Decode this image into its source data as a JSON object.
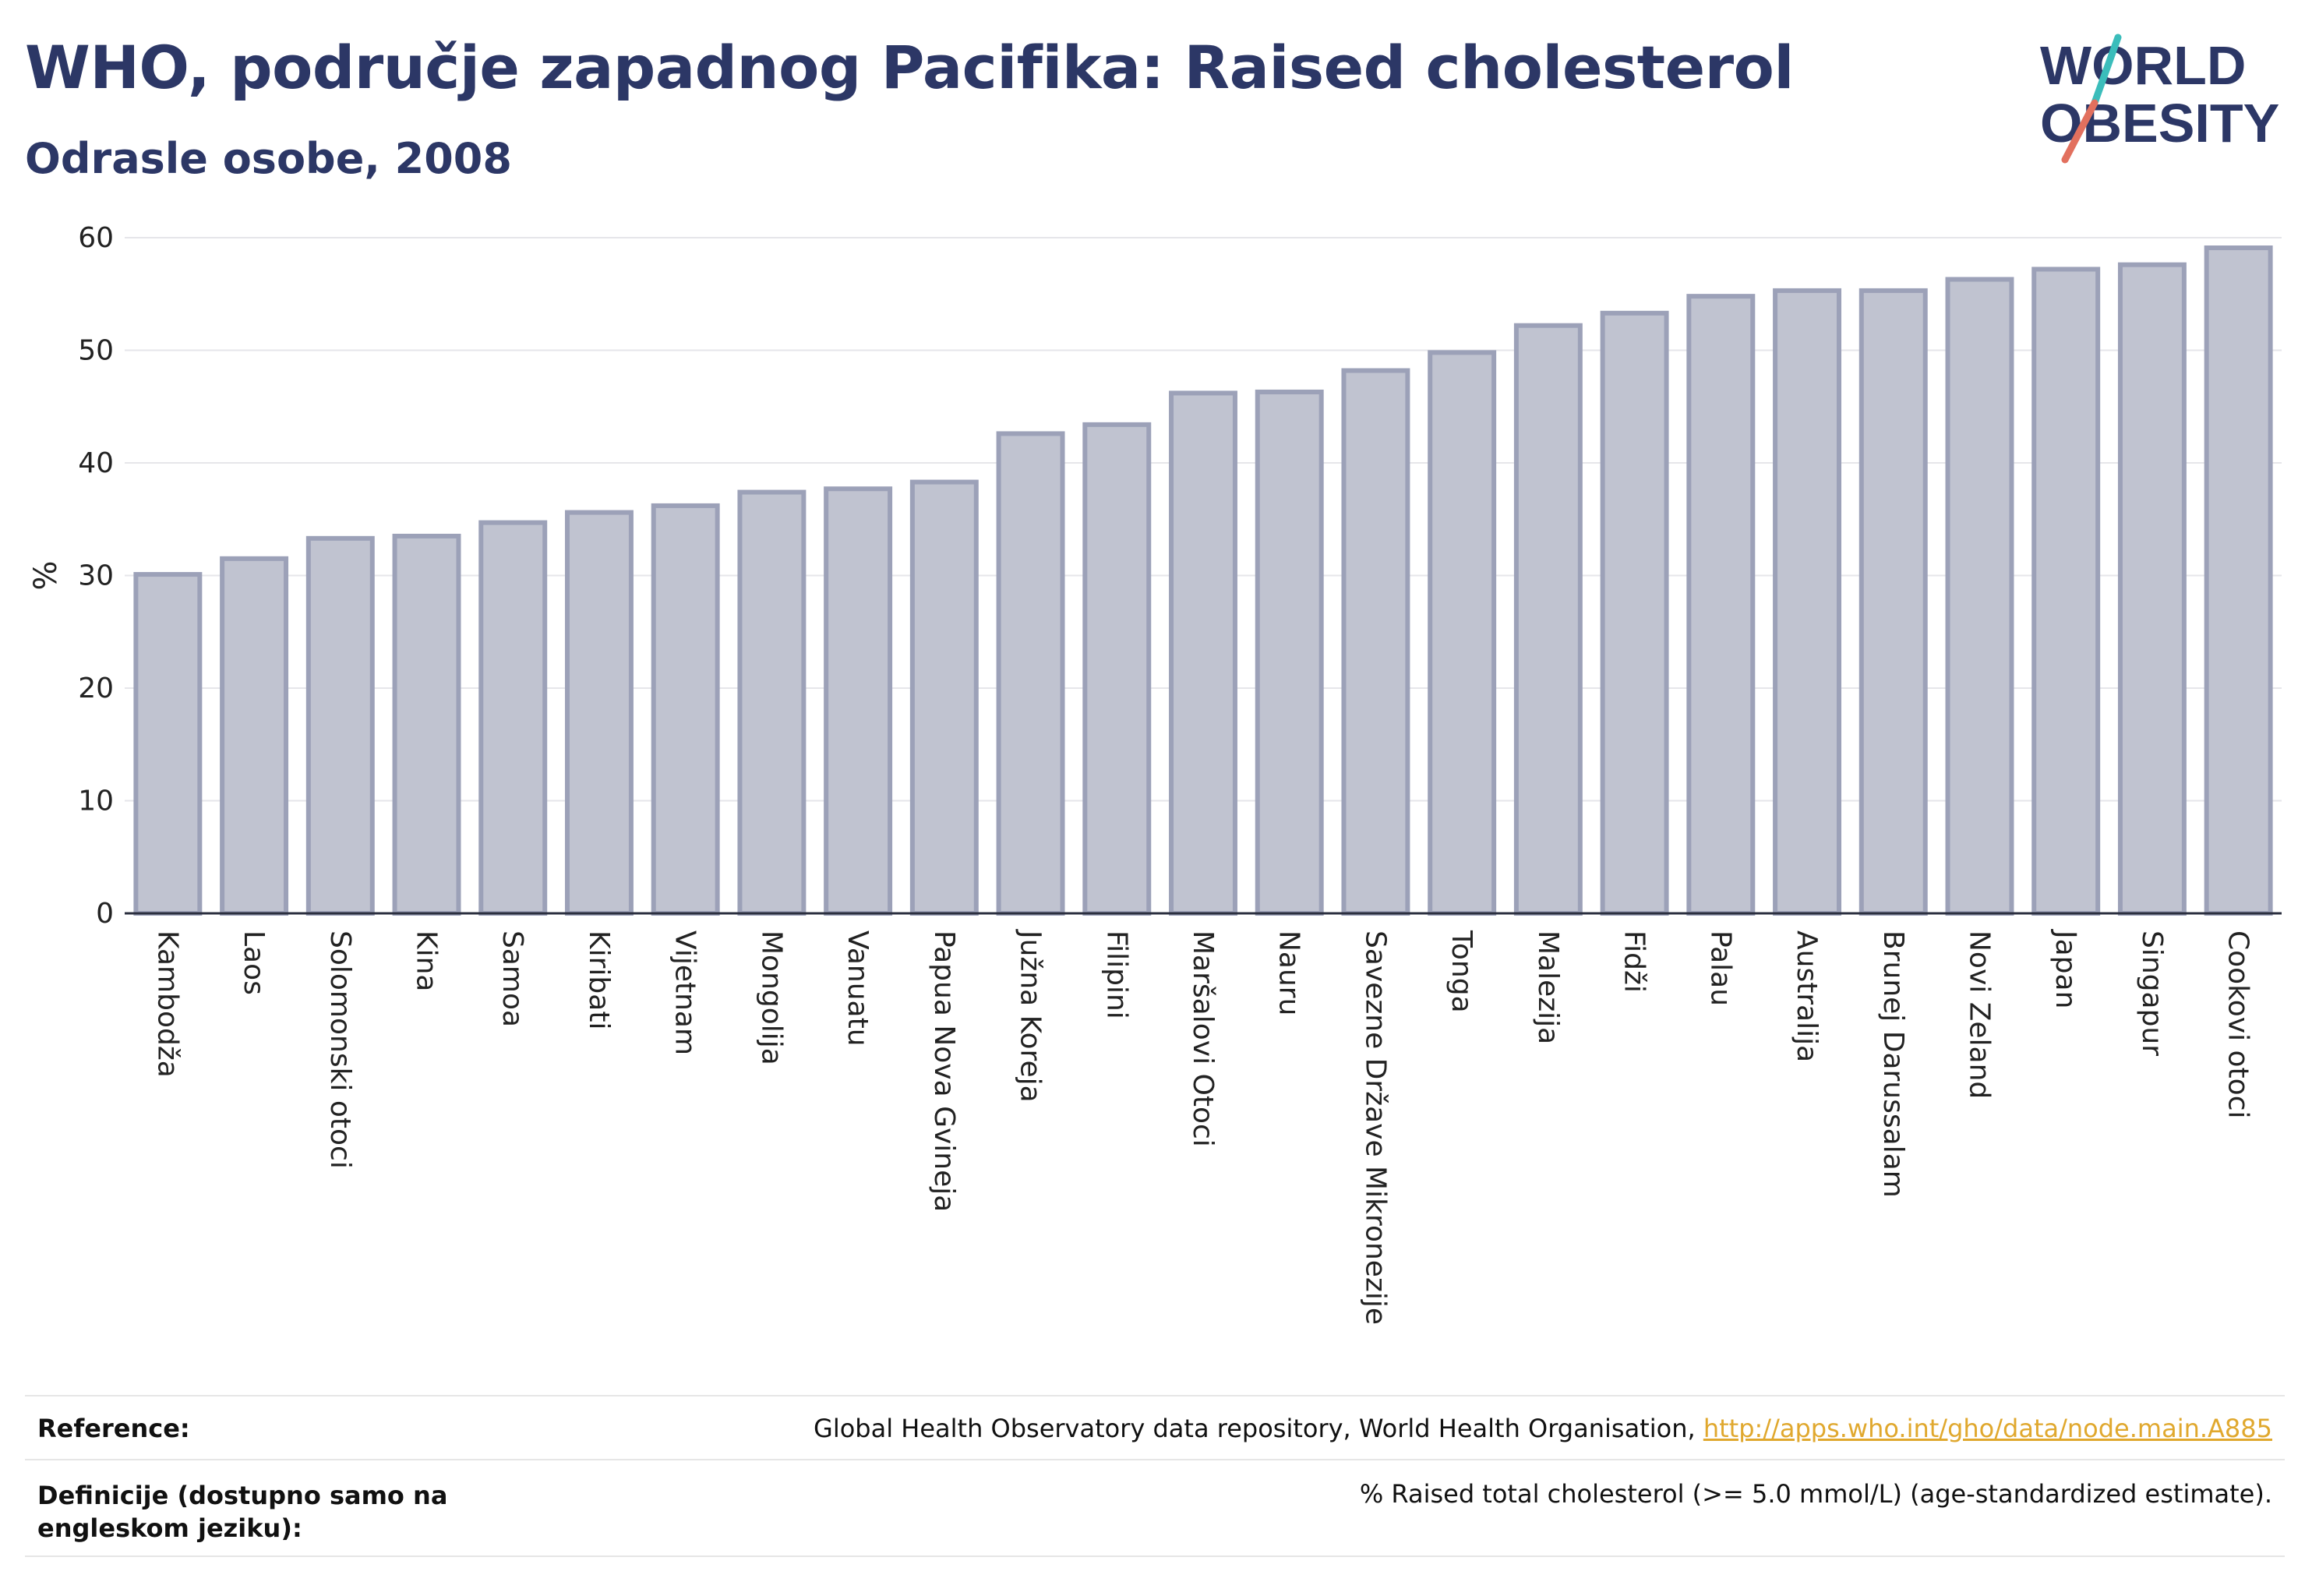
{
  "header": {
    "title": "WHO, područje zapadnog Pacifika: Raised cholesterol",
    "subtitle": "Odrasle osobe, 2008"
  },
  "logo": {
    "line1": "WORLD",
    "line2": "OBESITY"
  },
  "chart_data": {
    "type": "bar",
    "ylabel": "%",
    "ylim": [
      0,
      60
    ],
    "yticks": [
      0,
      10,
      20,
      30,
      40,
      50,
      60
    ],
    "grid": true,
    "colors": {
      "bar_fill": "#c0c3d0",
      "bar_stroke": "#9ca1b8",
      "axis": "#2b2f3f",
      "grid": "#e6e6ea"
    },
    "categories": [
      "Kambodža",
      "Laos",
      "Solomonski otoci",
      "Kina",
      "Samoa",
      "Kiribati",
      "Vijetnam",
      "Mongolija",
      "Vanuatu",
      "Papua Nova Gvineja",
      "Južna Koreja",
      "Filipini",
      "Maršalovi Otoci",
      "Nauru",
      "Savezne Države Mikronezije",
      "Tonga",
      "Malezija",
      "Fidži",
      "Palau",
      "Australija",
      "Brunej Darussalam",
      "Novi Zeland",
      "Japan",
      "Singapur",
      "Cookovi otoci"
    ],
    "values": [
      30.1,
      31.5,
      33.3,
      33.5,
      34.7,
      35.6,
      36.2,
      37.4,
      37.7,
      38.3,
      42.6,
      43.4,
      46.2,
      46.3,
      48.2,
      49.8,
      52.2,
      53.3,
      54.8,
      55.3,
      55.3,
      56.3,
      57.2,
      57.6,
      59.1
    ]
  },
  "footer": {
    "reference_label": "Reference:",
    "reference_text": "Global Health Observatory data repository, World Health Organisation, ",
    "reference_link": "http://apps.who.int/gho/data/node.main.A885",
    "definition_label": "Definicije (dostupno samo na engleskom jeziku):",
    "definition_text": "% Raised total cholesterol (>= 5.0 mmol/L) (age-standardized estimate)."
  }
}
